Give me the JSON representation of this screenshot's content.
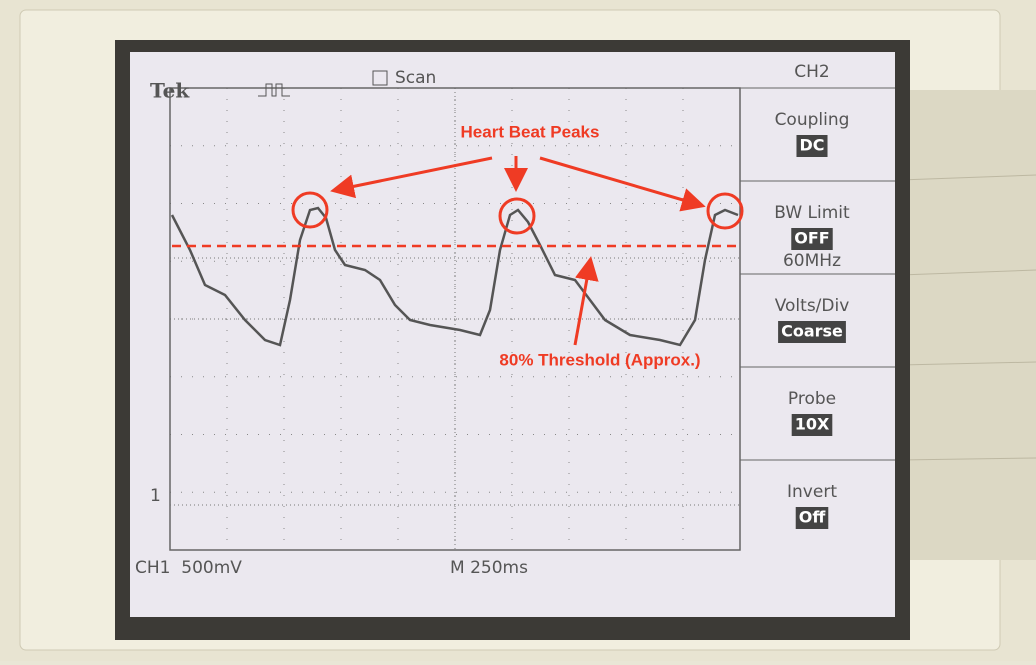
{
  "header": {
    "brand": "Tek",
    "mode": "Scan",
    "channel": "CH2"
  },
  "menu": [
    {
      "label": "Coupling",
      "setting": "DC"
    },
    {
      "label": "BW Limit",
      "setting": "OFF",
      "extra": "60MHz"
    },
    {
      "label": "Volts/Div",
      "setting": "Coarse"
    },
    {
      "label": "Probe",
      "setting": "10X"
    },
    {
      "label": "Invert",
      "setting": "Off"
    }
  ],
  "footer": {
    "scale": "CH1  500mV",
    "timebase": "M 250ms"
  },
  "ground_marker": "1",
  "annotations": {
    "peaks": "Heart Beat Peaks",
    "threshold": "80% Threshold (Approx.)"
  }
}
